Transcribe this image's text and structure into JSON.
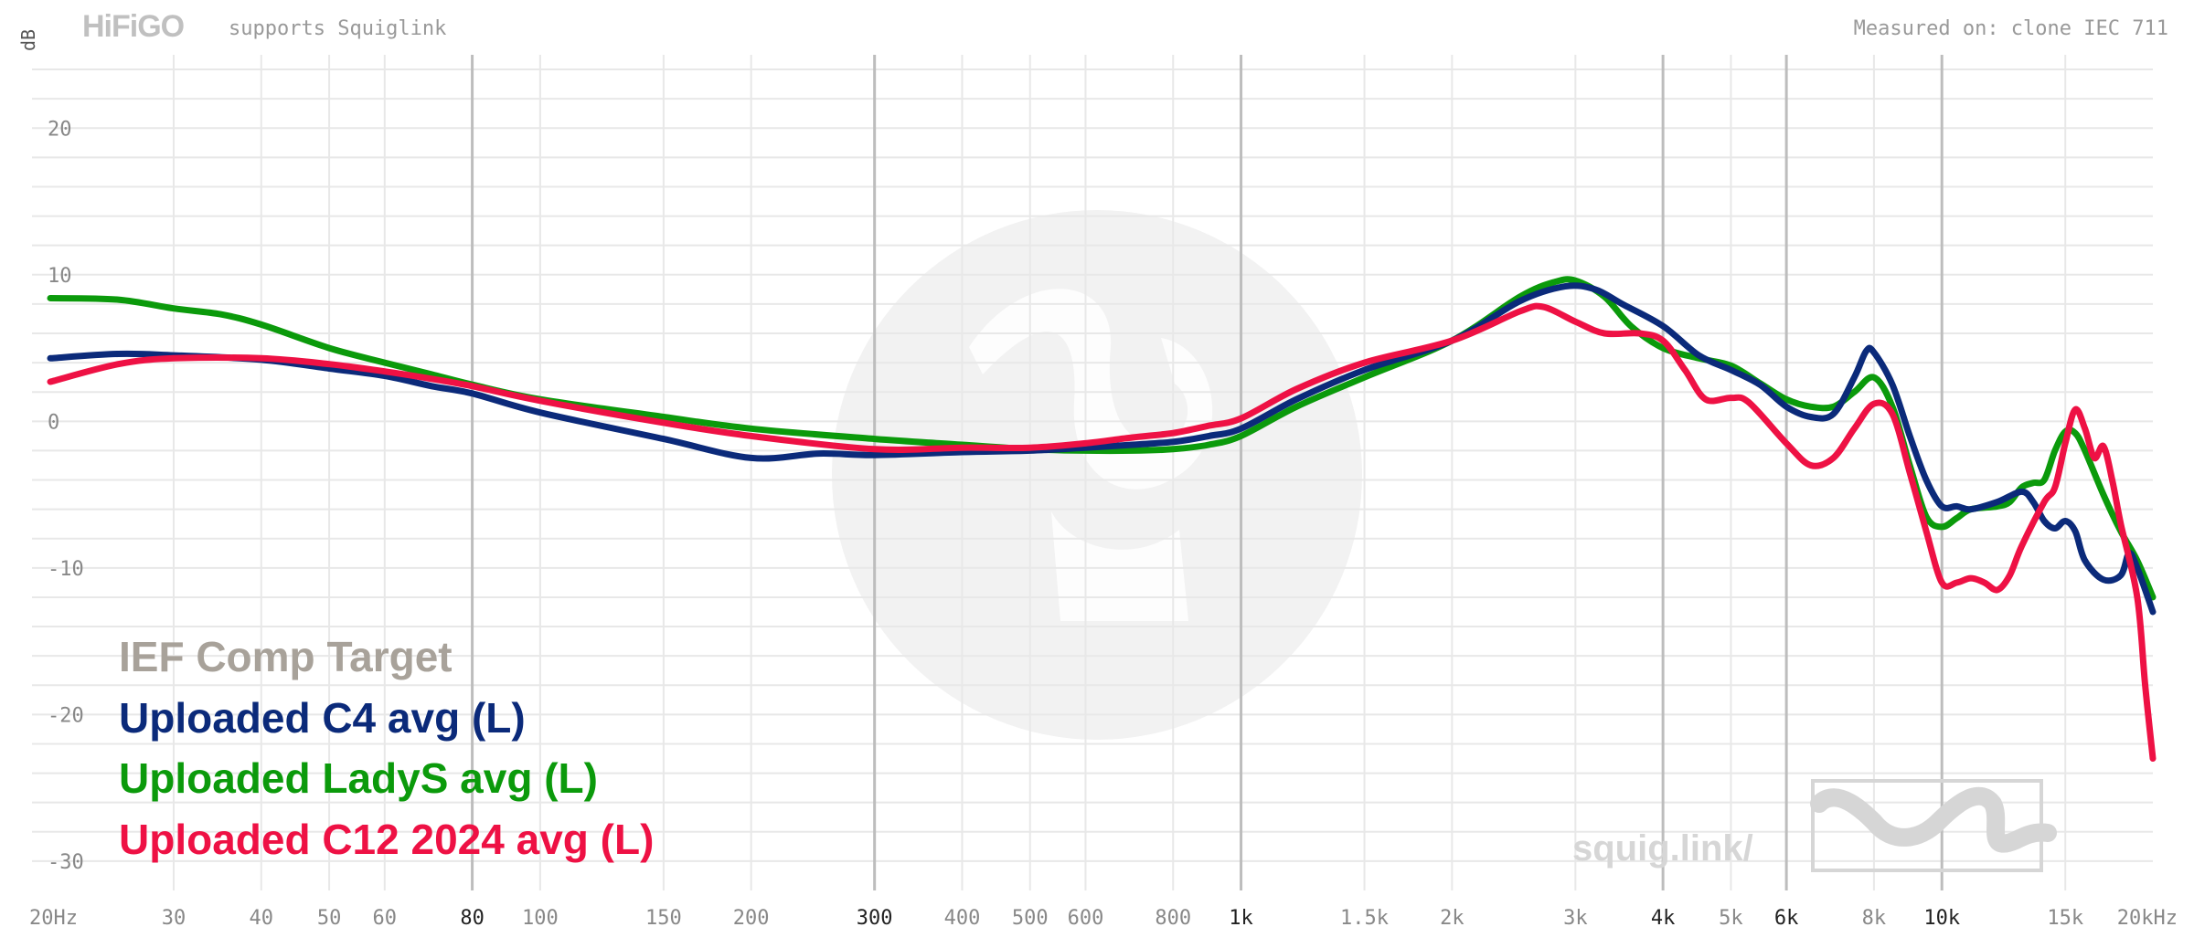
{
  "header": {
    "logo_text": "HiFiGO",
    "supports_text": "supports Squiglink",
    "measured_on": "Measured on: clone IEC 711"
  },
  "watermark": {
    "text": "squig.link/"
  },
  "colors": {
    "background": "#ffffff",
    "grid": "#e8e8e8",
    "grid_major": "#bdbdbd",
    "tick_label": "#888888",
    "target": "#a8a29a",
    "c4": "#0b2a7a",
    "ladys": "#0b9a0b",
    "c12": "#ee1144"
  },
  "chart_data": {
    "type": "line",
    "x_scale": "log",
    "xlim": [
      20,
      20000
    ],
    "ylim": [
      -32,
      25
    ],
    "ylabel": "dB",
    "grid": true,
    "legend_position": "bottom-left",
    "x_ticks": [
      {
        "v": 20,
        "label": "20Hz",
        "major": false
      },
      {
        "v": 30,
        "label": "30",
        "major": false
      },
      {
        "v": 40,
        "label": "40",
        "major": false
      },
      {
        "v": 50,
        "label": "50",
        "major": false
      },
      {
        "v": 60,
        "label": "60",
        "major": false
      },
      {
        "v": 80,
        "label": "80",
        "major": true
      },
      {
        "v": 100,
        "label": "100",
        "major": false
      },
      {
        "v": 150,
        "label": "150",
        "major": false
      },
      {
        "v": 200,
        "label": "200",
        "major": false
      },
      {
        "v": 300,
        "label": "300",
        "major": true
      },
      {
        "v": 400,
        "label": "400",
        "major": false
      },
      {
        "v": 500,
        "label": "500",
        "major": false
      },
      {
        "v": 600,
        "label": "600",
        "major": false
      },
      {
        "v": 800,
        "label": "800",
        "major": false
      },
      {
        "v": 1000,
        "label": "1k",
        "major": true
      },
      {
        "v": 1500,
        "label": "1.5k",
        "major": false
      },
      {
        "v": 2000,
        "label": "2k",
        "major": false
      },
      {
        "v": 3000,
        "label": "3k",
        "major": false
      },
      {
        "v": 4000,
        "label": "4k",
        "major": true
      },
      {
        "v": 5000,
        "label": "5k",
        "major": false
      },
      {
        "v": 6000,
        "label": "6k",
        "major": true
      },
      {
        "v": 8000,
        "label": "8k",
        "major": false
      },
      {
        "v": 10000,
        "label": "10k",
        "major": true
      },
      {
        "v": 15000,
        "label": "15k",
        "major": false
      },
      {
        "v": 20000,
        "label": "20kHz",
        "major": false
      }
    ],
    "y_ticks": [
      {
        "v": 20,
        "label": "20"
      },
      {
        "v": 10,
        "label": "10"
      },
      {
        "v": 0,
        "label": "0"
      },
      {
        "v": -10,
        "label": "-10"
      },
      {
        "v": -20,
        "label": "-20"
      },
      {
        "v": -30,
        "label": "-30"
      }
    ],
    "legend": [
      {
        "name": "IEF Comp Target",
        "color": "#a8a29a"
      },
      {
        "name": "Uploaded C4 avg (L)",
        "color": "#0b2a7a"
      },
      {
        "name": "Uploaded LadyS avg (L)",
        "color": "#0b9a0b"
      },
      {
        "name": "Uploaded C12 2024 avg (L)",
        "color": "#ee1144"
      }
    ],
    "series": [
      {
        "name": "Uploaded LadyS avg (L)",
        "color": "#0b9a0b",
        "points": [
          [
            20,
            8.4
          ],
          [
            25,
            8.3
          ],
          [
            30,
            7.7
          ],
          [
            35,
            7.3
          ],
          [
            40,
            6.6
          ],
          [
            50,
            5.0
          ],
          [
            60,
            4.0
          ],
          [
            70,
            3.2
          ],
          [
            80,
            2.5
          ],
          [
            100,
            1.5
          ],
          [
            150,
            0.3
          ],
          [
            200,
            -0.5
          ],
          [
            300,
            -1.2
          ],
          [
            400,
            -1.6
          ],
          [
            500,
            -1.9
          ],
          [
            600,
            -2.0
          ],
          [
            700,
            -2.0
          ],
          [
            800,
            -1.9
          ],
          [
            900,
            -1.6
          ],
          [
            1000,
            -1.0
          ],
          [
            1200,
            1.0
          ],
          [
            1500,
            3.0
          ],
          [
            2000,
            5.5
          ],
          [
            2500,
            8.5
          ],
          [
            2800,
            9.5
          ],
          [
            3000,
            9.6
          ],
          [
            3300,
            8.5
          ],
          [
            3600,
            6.5
          ],
          [
            4000,
            5.0
          ],
          [
            4500,
            4.3
          ],
          [
            5000,
            3.8
          ],
          [
            5500,
            2.6
          ],
          [
            6000,
            1.5
          ],
          [
            6500,
            1.0
          ],
          [
            7000,
            1.0
          ],
          [
            7500,
            2.0
          ],
          [
            8000,
            3.0
          ],
          [
            8500,
            1.0
          ],
          [
            9000,
            -3.0
          ],
          [
            9500,
            -6.5
          ],
          [
            10000,
            -7.2
          ],
          [
            10500,
            -6.6
          ],
          [
            11000,
            -6.0
          ],
          [
            12000,
            -5.8
          ],
          [
            12500,
            -5.5
          ],
          [
            13000,
            -4.5
          ],
          [
            13500,
            -4.2
          ],
          [
            14000,
            -4.0
          ],
          [
            14500,
            -2.0
          ],
          [
            15000,
            -0.7
          ],
          [
            15500,
            -0.8
          ],
          [
            16000,
            -2.0
          ],
          [
            17000,
            -5.0
          ],
          [
            18000,
            -7.5
          ],
          [
            19000,
            -9.5
          ],
          [
            20000,
            -12.0
          ]
        ]
      },
      {
        "name": "Uploaded C4 avg (L)",
        "color": "#0b2a7a",
        "points": [
          [
            20,
            4.3
          ],
          [
            25,
            4.6
          ],
          [
            30,
            4.5
          ],
          [
            40,
            4.2
          ],
          [
            50,
            3.6
          ],
          [
            60,
            3.1
          ],
          [
            70,
            2.4
          ],
          [
            80,
            1.9
          ],
          [
            100,
            0.6
          ],
          [
            150,
            -1.2
          ],
          [
            200,
            -2.5
          ],
          [
            250,
            -2.2
          ],
          [
            300,
            -2.3
          ],
          [
            400,
            -2.1
          ],
          [
            500,
            -2.0
          ],
          [
            600,
            -1.8
          ],
          [
            700,
            -1.6
          ],
          [
            800,
            -1.4
          ],
          [
            900,
            -1.0
          ],
          [
            1000,
            -0.5
          ],
          [
            1200,
            1.5
          ],
          [
            1500,
            3.5
          ],
          [
            2000,
            5.5
          ],
          [
            2500,
            8.2
          ],
          [
            2900,
            9.2
          ],
          [
            3200,
            9.0
          ],
          [
            3500,
            8.0
          ],
          [
            4000,
            6.5
          ],
          [
            4500,
            4.5
          ],
          [
            5000,
            3.5
          ],
          [
            5500,
            2.5
          ],
          [
            6000,
            1.0
          ],
          [
            6500,
            0.3
          ],
          [
            7000,
            0.5
          ],
          [
            7500,
            3.0
          ],
          [
            7800,
            4.8
          ],
          [
            8000,
            4.7
          ],
          [
            8500,
            2.5
          ],
          [
            9000,
            -1.0
          ],
          [
            9500,
            -4.0
          ],
          [
            10000,
            -5.8
          ],
          [
            10500,
            -5.8
          ],
          [
            11000,
            -6.0
          ],
          [
            12000,
            -5.5
          ],
          [
            13000,
            -4.8
          ],
          [
            13500,
            -5.5
          ],
          [
            14000,
            -6.8
          ],
          [
            14500,
            -7.3
          ],
          [
            15000,
            -6.8
          ],
          [
            15500,
            -7.5
          ],
          [
            16000,
            -9.5
          ],
          [
            17000,
            -10.8
          ],
          [
            18000,
            -10.5
          ],
          [
            18500,
            -9.0
          ],
          [
            19000,
            -10.0
          ],
          [
            20000,
            -13.0
          ]
        ]
      },
      {
        "name": "Uploaded C12 2024 avg (L)",
        "color": "#ee1144",
        "points": [
          [
            20,
            2.7
          ],
          [
            25,
            3.9
          ],
          [
            30,
            4.3
          ],
          [
            40,
            4.3
          ],
          [
            50,
            3.9
          ],
          [
            60,
            3.4
          ],
          [
            70,
            2.9
          ],
          [
            80,
            2.4
          ],
          [
            100,
            1.4
          ],
          [
            150,
            -0.1
          ],
          [
            200,
            -1.0
          ],
          [
            300,
            -1.9
          ],
          [
            400,
            -1.8
          ],
          [
            500,
            -1.8
          ],
          [
            600,
            -1.5
          ],
          [
            700,
            -1.1
          ],
          [
            800,
            -0.8
          ],
          [
            900,
            -0.3
          ],
          [
            1000,
            0.2
          ],
          [
            1200,
            2.2
          ],
          [
            1500,
            4.0
          ],
          [
            2000,
            5.5
          ],
          [
            2500,
            7.5
          ],
          [
            2700,
            7.8
          ],
          [
            3000,
            6.8
          ],
          [
            3300,
            6.0
          ],
          [
            3700,
            6.0
          ],
          [
            4000,
            5.5
          ],
          [
            4300,
            3.5
          ],
          [
            4600,
            1.5
          ],
          [
            5000,
            1.6
          ],
          [
            5300,
            1.3
          ],
          [
            6000,
            -1.5
          ],
          [
            6500,
            -3.0
          ],
          [
            7000,
            -2.5
          ],
          [
            7500,
            -0.5
          ],
          [
            8000,
            1.2
          ],
          [
            8500,
            0.5
          ],
          [
            9000,
            -3.5
          ],
          [
            9500,
            -7.5
          ],
          [
            10000,
            -11.0
          ],
          [
            10500,
            -11.0
          ],
          [
            11000,
            -10.7
          ],
          [
            11500,
            -11.0
          ],
          [
            12000,
            -11.5
          ],
          [
            12500,
            -10.5
          ],
          [
            13000,
            -8.5
          ],
          [
            14000,
            -5.5
          ],
          [
            14500,
            -4.5
          ],
          [
            15000,
            -1.5
          ],
          [
            15500,
            0.8
          ],
          [
            16000,
            -0.5
          ],
          [
            16500,
            -2.5
          ],
          [
            17000,
            -1.7
          ],
          [
            17500,
            -4.0
          ],
          [
            18000,
            -7.0
          ],
          [
            19000,
            -12.0
          ],
          [
            19500,
            -18.0
          ],
          [
            20000,
            -23.0
          ]
        ]
      }
    ]
  }
}
